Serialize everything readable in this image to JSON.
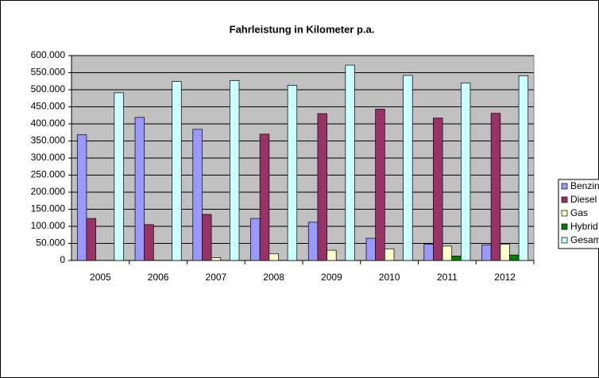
{
  "chart_data": {
    "type": "bar",
    "title": "Fahrleistung in Kilometer p.a.",
    "categories": [
      "2005",
      "2006",
      "2007",
      "2008",
      "2009",
      "2010",
      "2011",
      "2012"
    ],
    "series": [
      {
        "name": "Benzin",
        "color": "#9999ff",
        "values": [
          368000,
          419000,
          384000,
          123000,
          112000,
          65000,
          48000,
          46000
        ]
      },
      {
        "name": "Diesel",
        "color": "#993366",
        "values": [
          123000,
          105000,
          135000,
          370000,
          430000,
          443000,
          417000,
          431000
        ]
      },
      {
        "name": "Gas",
        "color": "#ffffcc",
        "values": [
          0,
          0,
          8000,
          20000,
          30000,
          34000,
          42000,
          48000
        ]
      },
      {
        "name": "Hybrid",
        "color": "#008000",
        "values": [
          0,
          0,
          0,
          0,
          0,
          0,
          13000,
          16000
        ]
      },
      {
        "name": "Gesamt",
        "color": "#ccffff",
        "values": [
          491000,
          524000,
          527000,
          513000,
          572000,
          542000,
          520000,
          541000
        ]
      }
    ],
    "ylim": [
      0,
      600000
    ],
    "yticks": [
      0,
      {
        "value": 50000,
        "label": "50.000"
      },
      {
        "value": 100000,
        "label": "100.000"
      },
      {
        "value": 150000,
        "label": "150.000"
      },
      {
        "value": 200000,
        "label": "200.000"
      },
      {
        "value": 250000,
        "label": "250.000"
      },
      {
        "value": 300000,
        "label": "300.000"
      },
      {
        "value": 350000,
        "label": "350.000"
      },
      {
        "value": 400000,
        "label": "400.000"
      },
      {
        "value": 450000,
        "label": "450.000"
      },
      {
        "value": 500000,
        "label": "500.000"
      },
      {
        "value": 550000,
        "label": "550.000"
      },
      {
        "value": 600000,
        "label": "600.000"
      }
    ],
    "grid": true,
    "legend": "right"
  }
}
